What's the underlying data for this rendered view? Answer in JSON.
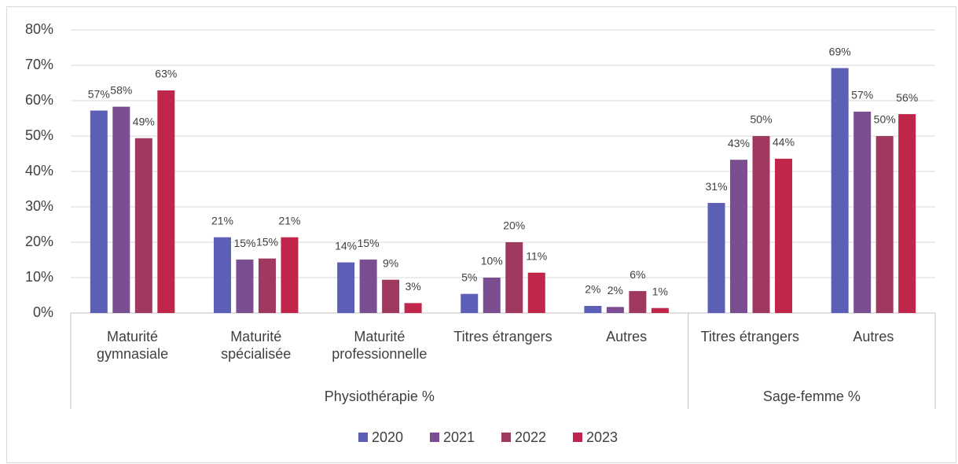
{
  "chart_data": {
    "type": "bar",
    "groups": [
      {
        "name": "Physiothérapie %",
        "categories": [
          "Maturité gymnasiale",
          "Maturité spécialisée",
          "Maturité professionnelle",
          "Titres étrangers",
          "Autres"
        ]
      },
      {
        "name": "Sage-femme %",
        "categories": [
          "Titres étrangers",
          "Autres"
        ]
      }
    ],
    "series": [
      {
        "name": "2020",
        "color": "#5b5fb5",
        "values": [
          57.2,
          21.4,
          14.3,
          5.4,
          2,
          31.1,
          69.2
        ],
        "value_labels": [
          "57%",
          "21%",
          "14%",
          "5%",
          "2%",
          "31%",
          "69%"
        ]
      },
      {
        "name": "2021",
        "color": "#7b4d91",
        "values": [
          58.3,
          15.1,
          15.1,
          10,
          1.7,
          43.3,
          56.9
        ],
        "value_labels": [
          "58%",
          "15%",
          "15%",
          "10%",
          "2%",
          "43%",
          "57%"
        ]
      },
      {
        "name": "2022",
        "color": "#a0395f",
        "values": [
          49.4,
          15.4,
          9.4,
          20,
          6.2,
          50,
          50
        ],
        "value_labels": [
          "49%",
          "15%",
          "9%",
          "20%",
          "6%",
          "50%",
          "50%"
        ]
      },
      {
        "name": "2023",
        "color": "#c0264a",
        "values": [
          62.9,
          21.4,
          2.8,
          11.4,
          1.4,
          43.6,
          56.2
        ],
        "value_labels": [
          "63%",
          "21%",
          "3%",
          "11%",
          "1%",
          "44%",
          "56%"
        ]
      }
    ],
    "ylim": [
      0,
      80
    ],
    "yticks": [
      {
        "value": 0,
        "label": "0%"
      },
      {
        "value": 10,
        "label": "10%"
      },
      {
        "value": 20,
        "label": "20%"
      },
      {
        "value": 30,
        "label": "30%"
      },
      {
        "value": 40,
        "label": "40%"
      },
      {
        "value": 50,
        "label": "50%"
      },
      {
        "value": 60,
        "label": "60%"
      },
      {
        "value": 70,
        "label": "70%"
      },
      {
        "value": 80,
        "label": "80%"
      }
    ],
    "grid": true,
    "legend": "bottom"
  }
}
